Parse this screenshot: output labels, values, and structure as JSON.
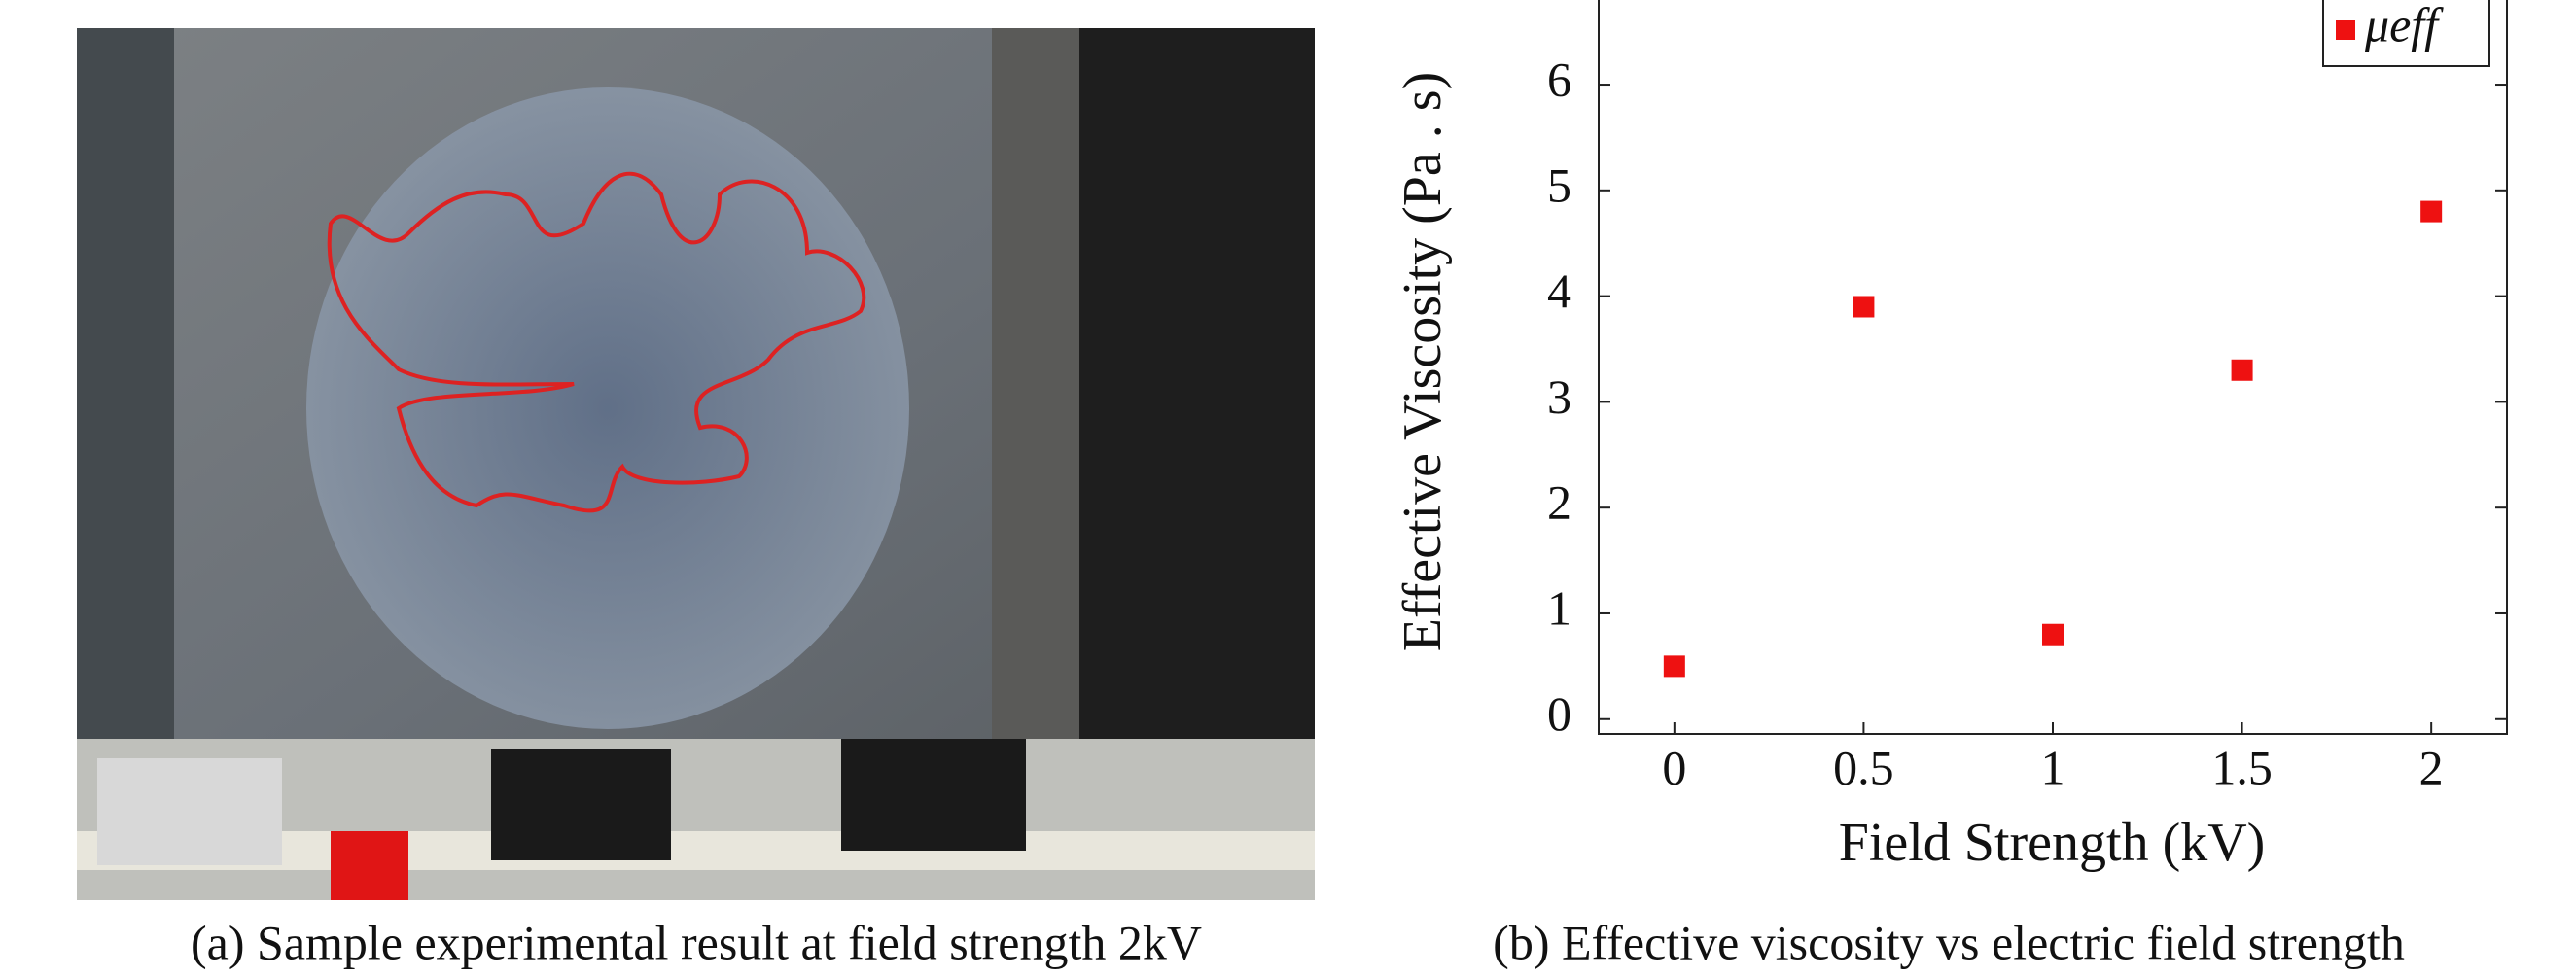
{
  "photo_caption": "(a) Sample experimental result at field strength 2kV",
  "chart_data": {
    "type": "scatter",
    "title": "(b) Effective viscosity vs electric field strength",
    "x_label": "Field Strength (kV)",
    "y_label": "Effective Viscosity (Pa . s)",
    "series": [
      {
        "name": "μeff",
        "color": "#ee1111",
        "x": [
          0,
          0.5,
          1,
          1.5,
          2
        ],
        "values": [
          0.5,
          3.9,
          0.8,
          3.3,
          4.8
        ]
      }
    ],
    "xlim": [
      -0.2,
      2.2
    ],
    "ylim": [
      -0.14,
      6.8
    ],
    "xticks": [
      0,
      0.5,
      1,
      1.5,
      2
    ],
    "yticks": [
      0,
      1,
      2,
      3,
      4,
      5,
      6
    ],
    "legend": "top-right",
    "grid": false
  }
}
